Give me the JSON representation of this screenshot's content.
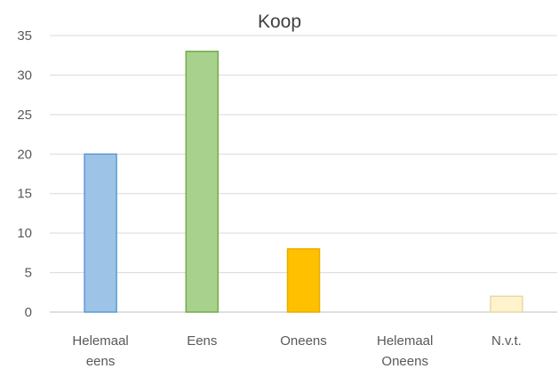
{
  "chart_data": {
    "type": "bar",
    "title": "Koop",
    "categories": [
      [
        "Helemaal",
        "eens"
      ],
      [
        "Eens"
      ],
      [
        "Oneens"
      ],
      [
        "Helemaal",
        "Oneens"
      ],
      [
        "N.v.t."
      ]
    ],
    "values": [
      20,
      33,
      8,
      0,
      2
    ],
    "bar_colors": [
      "#9dc3e6",
      "#a9d18e",
      "#ffc000",
      "#ffffff",
      "#fff2cc"
    ],
    "bar_edge_colors": [
      "#5b9bd5",
      "#70ad47",
      "#e6ad00",
      "#ffffff",
      "#e8d9a8"
    ],
    "ylim": [
      0,
      35
    ],
    "yticks": [
      0,
      5,
      10,
      15,
      20,
      25,
      30,
      35
    ],
    "grid": true,
    "xlabel": "",
    "ylabel": ""
  }
}
